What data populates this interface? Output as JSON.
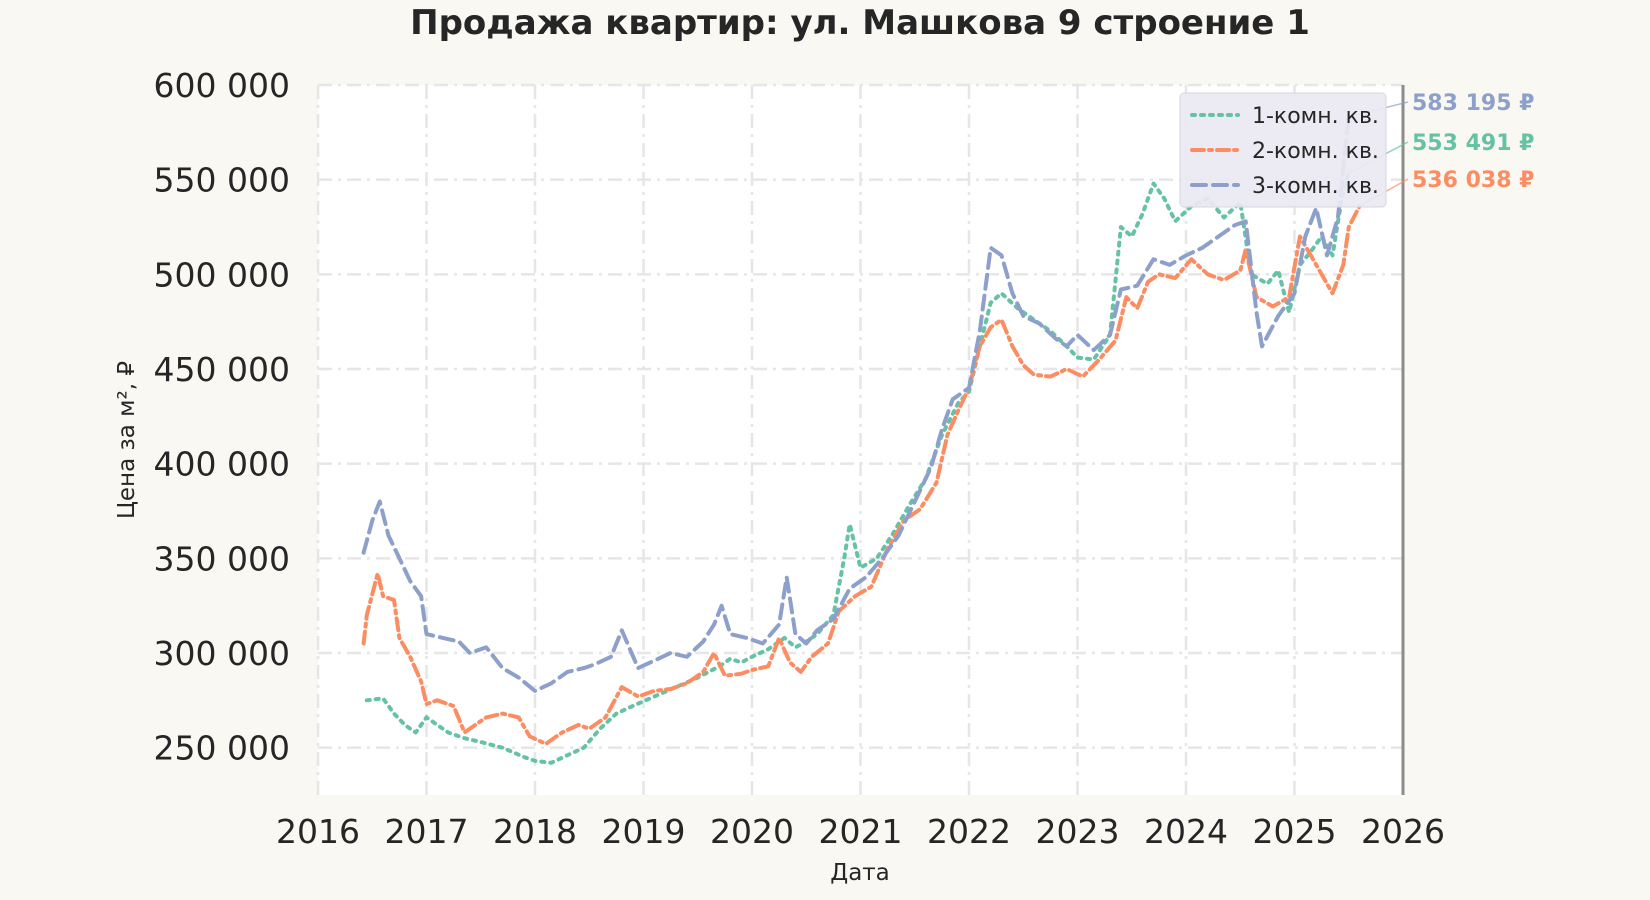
{
  "chart_data": {
    "type": "line",
    "title": "Продажа квартир: ул. Машкова 9 строение 1",
    "xlabel": "Дата",
    "ylabel": "Цена за м², ₽",
    "xlim": [
      2016,
      2026
    ],
    "ylim": [
      225000,
      600000
    ],
    "x_ticks": [
      2016,
      2017,
      2018,
      2019,
      2020,
      2021,
      2022,
      2023,
      2024,
      2025,
      2026
    ],
    "x_tick_labels": [
      "2016",
      "2017",
      "2018",
      "2019",
      "2020",
      "2021",
      "2022",
      "2023",
      "2024",
      "2025",
      "2026"
    ],
    "y_ticks": [
      250000,
      300000,
      350000,
      400000,
      450000,
      500000,
      550000,
      600000
    ],
    "y_tick_labels": [
      "250 000",
      "300 000",
      "350 000",
      "400 000",
      "450 000",
      "500 000",
      "550 000",
      "600 000"
    ],
    "grid": true,
    "legend_position": "top-right",
    "series": [
      {
        "name": "1-комн. кв.",
        "color": "#66c2a5",
        "dash": "dotted",
        "end_label": "553 491 ₽",
        "points": [
          [
            2016.45,
            275000
          ],
          [
            2016.6,
            276000
          ],
          [
            2016.7,
            268000
          ],
          [
            2016.8,
            262000
          ],
          [
            2016.9,
            258000
          ],
          [
            2017.0,
            266000
          ],
          [
            2017.1,
            262000
          ],
          [
            2017.2,
            258000
          ],
          [
            2017.35,
            255000
          ],
          [
            2017.5,
            253000
          ],
          [
            2017.7,
            250000
          ],
          [
            2017.9,
            245000
          ],
          [
            2018.0,
            243000
          ],
          [
            2018.15,
            242000
          ],
          [
            2018.3,
            246000
          ],
          [
            2018.45,
            250000
          ],
          [
            2018.6,
            260000
          ],
          [
            2018.75,
            268000
          ],
          [
            2018.9,
            272000
          ],
          [
            2019.1,
            277000
          ],
          [
            2019.3,
            282000
          ],
          [
            2019.5,
            287000
          ],
          [
            2019.6,
            290000
          ],
          [
            2019.7,
            293000
          ],
          [
            2019.8,
            297000
          ],
          [
            2019.9,
            295000
          ],
          [
            2020.0,
            298000
          ],
          [
            2020.15,
            302000
          ],
          [
            2020.3,
            308000
          ],
          [
            2020.4,
            303000
          ],
          [
            2020.5,
            306000
          ],
          [
            2020.6,
            310000
          ],
          [
            2020.75,
            320000
          ],
          [
            2020.85,
            350000
          ],
          [
            2020.9,
            368000
          ],
          [
            2021.0,
            345000
          ],
          [
            2021.15,
            350000
          ],
          [
            2021.3,
            363000
          ],
          [
            2021.45,
            378000
          ],
          [
            2021.6,
            392000
          ],
          [
            2021.75,
            415000
          ],
          [
            2021.9,
            432000
          ],
          [
            2022.0,
            438000
          ],
          [
            2022.1,
            462000
          ],
          [
            2022.2,
            485000
          ],
          [
            2022.3,
            490000
          ],
          [
            2022.45,
            482000
          ],
          [
            2022.6,
            476000
          ],
          [
            2022.75,
            470000
          ],
          [
            2022.9,
            462000
          ],
          [
            2023.0,
            456000
          ],
          [
            2023.15,
            455000
          ],
          [
            2023.3,
            468000
          ],
          [
            2023.4,
            525000
          ],
          [
            2023.5,
            520000
          ],
          [
            2023.6,
            532000
          ],
          [
            2023.7,
            548000
          ],
          [
            2023.8,
            540000
          ],
          [
            2023.9,
            528000
          ],
          [
            2024.05,
            536000
          ],
          [
            2024.2,
            540000
          ],
          [
            2024.35,
            530000
          ],
          [
            2024.5,
            538000
          ],
          [
            2024.6,
            500000
          ],
          [
            2024.75,
            495000
          ],
          [
            2024.85,
            502000
          ],
          [
            2024.95,
            480000
          ],
          [
            2025.05,
            505000
          ],
          [
            2025.15,
            512000
          ],
          [
            2025.25,
            520000
          ],
          [
            2025.35,
            510000
          ],
          [
            2025.45,
            545000
          ],
          [
            2025.5,
            553491
          ]
        ]
      },
      {
        "name": "2-комн. кв.",
        "color": "#fc8d62",
        "dash": "dashdot",
        "end_label": "536 038 ₽",
        "points": [
          [
            2016.42,
            305000
          ],
          [
            2016.45,
            320000
          ],
          [
            2016.55,
            342000
          ],
          [
            2016.6,
            330000
          ],
          [
            2016.7,
            328000
          ],
          [
            2016.75,
            308000
          ],
          [
            2016.85,
            298000
          ],
          [
            2016.95,
            285000
          ],
          [
            2017.0,
            273000
          ],
          [
            2017.1,
            275000
          ],
          [
            2017.25,
            272000
          ],
          [
            2017.35,
            258000
          ],
          [
            2017.45,
            262000
          ],
          [
            2017.55,
            266000
          ],
          [
            2017.7,
            268000
          ],
          [
            2017.85,
            266000
          ],
          [
            2017.95,
            256000
          ],
          [
            2018.1,
            252000
          ],
          [
            2018.25,
            258000
          ],
          [
            2018.4,
            262000
          ],
          [
            2018.5,
            260000
          ],
          [
            2018.65,
            266000
          ],
          [
            2018.8,
            282000
          ],
          [
            2018.95,
            277000
          ],
          [
            2019.1,
            280000
          ],
          [
            2019.25,
            281000
          ],
          [
            2019.4,
            284000
          ],
          [
            2019.55,
            290000
          ],
          [
            2019.65,
            300000
          ],
          [
            2019.75,
            288000
          ],
          [
            2019.9,
            289000
          ],
          [
            2020.0,
            291000
          ],
          [
            2020.15,
            293000
          ],
          [
            2020.25,
            308000
          ],
          [
            2020.35,
            295000
          ],
          [
            2020.45,
            290000
          ],
          [
            2020.55,
            298000
          ],
          [
            2020.7,
            305000
          ],
          [
            2020.8,
            322000
          ],
          [
            2020.95,
            330000
          ],
          [
            2021.1,
            335000
          ],
          [
            2021.25,
            355000
          ],
          [
            2021.4,
            370000
          ],
          [
            2021.55,
            376000
          ],
          [
            2021.7,
            390000
          ],
          [
            2021.8,
            415000
          ],
          [
            2021.9,
            428000
          ],
          [
            2022.0,
            440000
          ],
          [
            2022.1,
            462000
          ],
          [
            2022.2,
            472000
          ],
          [
            2022.3,
            476000
          ],
          [
            2022.4,
            462000
          ],
          [
            2022.5,
            452000
          ],
          [
            2022.6,
            447000
          ],
          [
            2022.75,
            446000
          ],
          [
            2022.9,
            450000
          ],
          [
            2023.05,
            446000
          ],
          [
            2023.2,
            455000
          ],
          [
            2023.35,
            465000
          ],
          [
            2023.45,
            488000
          ],
          [
            2023.55,
            482000
          ],
          [
            2023.65,
            496000
          ],
          [
            2023.75,
            500000
          ],
          [
            2023.9,
            498000
          ],
          [
            2024.05,
            508000
          ],
          [
            2024.2,
            500000
          ],
          [
            2024.35,
            497000
          ],
          [
            2024.5,
            502000
          ],
          [
            2024.55,
            513000
          ],
          [
            2024.65,
            488000
          ],
          [
            2024.8,
            483000
          ],
          [
            2024.95,
            488000
          ],
          [
            2025.05,
            520000
          ],
          [
            2025.15,
            510000
          ],
          [
            2025.25,
            500000
          ],
          [
            2025.35,
            490000
          ],
          [
            2025.45,
            505000
          ],
          [
            2025.5,
            525000
          ],
          [
            2025.6,
            536038
          ]
        ]
      },
      {
        "name": "3-комн. кв.",
        "color": "#8da0cb",
        "dash": "dashed",
        "end_label": "583 195 ₽",
        "points": [
          [
            2016.42,
            353000
          ],
          [
            2016.5,
            370000
          ],
          [
            2016.57,
            380000
          ],
          [
            2016.65,
            362000
          ],
          [
            2016.75,
            350000
          ],
          [
            2016.85,
            338000
          ],
          [
            2016.95,
            330000
          ],
          [
            2017.0,
            310000
          ],
          [
            2017.15,
            308000
          ],
          [
            2017.3,
            306000
          ],
          [
            2017.4,
            300000
          ],
          [
            2017.55,
            303000
          ],
          [
            2017.7,
            292000
          ],
          [
            2017.85,
            287000
          ],
          [
            2018.0,
            280000
          ],
          [
            2018.15,
            284000
          ],
          [
            2018.3,
            290000
          ],
          [
            2018.45,
            292000
          ],
          [
            2018.55,
            294000
          ],
          [
            2018.7,
            298000
          ],
          [
            2018.8,
            312000
          ],
          [
            2018.95,
            292000
          ],
          [
            2019.1,
            296000
          ],
          [
            2019.25,
            300000
          ],
          [
            2019.4,
            298000
          ],
          [
            2019.55,
            306000
          ],
          [
            2019.65,
            315000
          ],
          [
            2019.72,
            325000
          ],
          [
            2019.8,
            310000
          ],
          [
            2019.95,
            308000
          ],
          [
            2020.1,
            305000
          ],
          [
            2020.25,
            315000
          ],
          [
            2020.32,
            340000
          ],
          [
            2020.4,
            310000
          ],
          [
            2020.5,
            305000
          ],
          [
            2020.6,
            312000
          ],
          [
            2020.75,
            318000
          ],
          [
            2020.9,
            334000
          ],
          [
            2021.05,
            340000
          ],
          [
            2021.2,
            350000
          ],
          [
            2021.35,
            362000
          ],
          [
            2021.5,
            380000
          ],
          [
            2021.65,
            398000
          ],
          [
            2021.75,
            418000
          ],
          [
            2021.85,
            434000
          ],
          [
            2022.0,
            440000
          ],
          [
            2022.1,
            470000
          ],
          [
            2022.2,
            514000
          ],
          [
            2022.3,
            510000
          ],
          [
            2022.4,
            490000
          ],
          [
            2022.5,
            478000
          ],
          [
            2022.65,
            474000
          ],
          [
            2022.8,
            466000
          ],
          [
            2022.9,
            462000
          ],
          [
            2023.0,
            468000
          ],
          [
            2023.15,
            460000
          ],
          [
            2023.3,
            468000
          ],
          [
            2023.4,
            492000
          ],
          [
            2023.55,
            494000
          ],
          [
            2023.7,
            508000
          ],
          [
            2023.85,
            505000
          ],
          [
            2024.0,
            510000
          ],
          [
            2024.15,
            514000
          ],
          [
            2024.3,
            520000
          ],
          [
            2024.45,
            526000
          ],
          [
            2024.55,
            528000
          ],
          [
            2024.65,
            480000
          ],
          [
            2024.7,
            462000
          ],
          [
            2024.85,
            478000
          ],
          [
            2025.0,
            490000
          ],
          [
            2025.1,
            520000
          ],
          [
            2025.2,
            535000
          ],
          [
            2025.3,
            510000
          ],
          [
            2025.4,
            530000
          ],
          [
            2025.5,
            583195
          ]
        ]
      }
    ]
  }
}
